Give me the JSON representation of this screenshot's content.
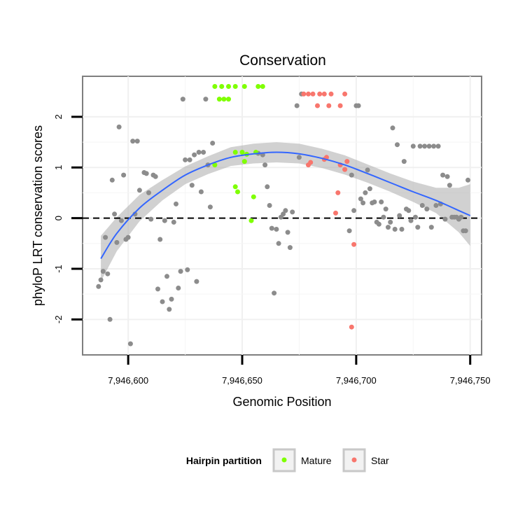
{
  "chart_data": {
    "type": "scatter",
    "title": "Conservation",
    "xlabel": "Genomic Position",
    "ylabel": "phyloP LRT conservation scores",
    "xlim": [
      7946580,
      7946755
    ],
    "ylim": [
      -2.7,
      2.8
    ],
    "x_ticks": [
      7946600,
      7946650,
      7946700,
      7946750
    ],
    "x_tick_labels": [
      "7,946,600",
      "7,946,650",
      "7,946,700",
      "7,946,750"
    ],
    "y_ticks": [
      -2,
      -1,
      0,
      1,
      2
    ],
    "y_tick_labels": [
      "-2",
      "-1",
      "0",
      "1",
      "2"
    ],
    "reference_line": {
      "y": 0,
      "style": "dashed"
    },
    "grid": true,
    "legend": {
      "title": "Hairpin partition",
      "position": "bottom",
      "entries": [
        {
          "label": "Mature",
          "color": "#7FFF00"
        },
        {
          "label": "Star",
          "color": "#F8766D"
        }
      ]
    },
    "colors": {
      "other": "#8c8c8c",
      "mature": "#7FFF00",
      "star": "#F8766D",
      "smooth": "#3366FF",
      "ribbon": "#b3b3b3"
    },
    "smooth_curve": [
      [
        7946588,
        -0.8
      ],
      [
        7946595,
        -0.3
      ],
      [
        7946605,
        0.2
      ],
      [
        7946615,
        0.55
      ],
      [
        7946625,
        0.85
      ],
      [
        7946635,
        1.05
      ],
      [
        7946645,
        1.2
      ],
      [
        7946655,
        1.27
      ],
      [
        7946665,
        1.3
      ],
      [
        7946675,
        1.27
      ],
      [
        7946685,
        1.18
      ],
      [
        7946695,
        1.05
      ],
      [
        7946705,
        0.88
      ],
      [
        7946715,
        0.7
      ],
      [
        7946725,
        0.52
      ],
      [
        7946735,
        0.35
      ],
      [
        7946745,
        0.15
      ],
      [
        7946750,
        0.05
      ]
    ],
    "smooth_band": [
      [
        7946588,
        -1.25,
        -0.35
      ],
      [
        7946595,
        -0.65,
        0.02
      ],
      [
        7946605,
        -0.06,
        0.46
      ],
      [
        7946615,
        0.35,
        0.75
      ],
      [
        7946625,
        0.67,
        1.02
      ],
      [
        7946635,
        0.87,
        1.22
      ],
      [
        7946645,
        1.03,
        1.4
      ],
      [
        7946655,
        1.08,
        1.47
      ],
      [
        7946665,
        1.1,
        1.5
      ],
      [
        7946675,
        1.08,
        1.47
      ],
      [
        7946685,
        0.99,
        1.37
      ],
      [
        7946695,
        0.86,
        1.24
      ],
      [
        7946705,
        0.7,
        1.06
      ],
      [
        7946715,
        0.52,
        0.88
      ],
      [
        7946725,
        0.32,
        0.72
      ],
      [
        7946735,
        0.1,
        0.6
      ],
      [
        7946745,
        -0.28,
        0.6
      ],
      [
        7946750,
        -0.55,
        0.67
      ]
    ],
    "series": [
      {
        "name": "Mature",
        "color": "#7FFF00",
        "points": [
          [
            7946638,
            2.6
          ],
          [
            7946641,
            2.6
          ],
          [
            7946644,
            2.6
          ],
          [
            7946647,
            2.6
          ],
          [
            7946651,
            2.6
          ],
          [
            7946657,
            2.6
          ],
          [
            7946659,
            2.6
          ],
          [
            7946640,
            2.35
          ],
          [
            7946642,
            2.35
          ],
          [
            7946644,
            2.35
          ],
          [
            7946638,
            1.05
          ],
          [
            7946647,
            1.3
          ],
          [
            7946650,
            1.3
          ],
          [
            7946652,
            1.26
          ],
          [
            7946651,
            1.12
          ],
          [
            7946656,
            1.3
          ],
          [
            7946647,
            0.62
          ],
          [
            7946648,
            0.52
          ],
          [
            7946655,
            0.42
          ],
          [
            7946654,
            -0.05
          ]
        ]
      },
      {
        "name": "Star",
        "color": "#F8766D",
        "points": [
          [
            7946677,
            2.45
          ],
          [
            7946679,
            2.45
          ],
          [
            7946681,
            2.45
          ],
          [
            7946684,
            2.45
          ],
          [
            7946686,
            2.45
          ],
          [
            7946689,
            2.45
          ],
          [
            7946695,
            2.45
          ],
          [
            7946683,
            2.22
          ],
          [
            7946688,
            2.22
          ],
          [
            7946693,
            2.22
          ],
          [
            7946679,
            1.05
          ],
          [
            7946680,
            1.1
          ],
          [
            7946686,
            1.16
          ],
          [
            7946687,
            1.2
          ],
          [
            7946693,
            1.05
          ],
          [
            7946696,
            1.12
          ],
          [
            7946695,
            0.96
          ],
          [
            7946692,
            0.5
          ],
          [
            7946691,
            0.1
          ],
          [
            7946699,
            -0.52
          ],
          [
            7946698,
            -2.15
          ]
        ]
      },
      {
        "points": [
          [
            7946587,
            -1.35
          ],
          [
            7946588,
            -1.22
          ],
          [
            7946589,
            -1.05
          ],
          [
            7946590,
            -0.38
          ],
          [
            7946591,
            -1.1
          ],
          [
            7946592,
            -2.0
          ],
          [
            7946593,
            0.75
          ],
          [
            7946594,
            0.08
          ],
          [
            7946595,
            -0.48
          ],
          [
            7946596,
            1.8
          ],
          [
            7946597,
            -0.05
          ],
          [
            7946598,
            0.85
          ],
          [
            7946599,
            -0.42
          ],
          [
            7946600,
            -0.38
          ],
          [
            7946601,
            -2.48
          ],
          [
            7946602,
            1.52
          ],
          [
            7946603,
            0.08
          ],
          [
            7946604,
            1.52
          ],
          [
            7946605,
            0.55
          ],
          [
            7946607,
            0.9
          ],
          [
            7946608,
            0.88
          ],
          [
            7946609,
            0.5
          ],
          [
            7946610,
            -0.02
          ],
          [
            7946611,
            0.85
          ],
          [
            7946612,
            0.82
          ],
          [
            7946613,
            -1.4
          ],
          [
            7946614,
            -0.42
          ],
          [
            7946615,
            -1.65
          ],
          [
            7946616,
            -0.05
          ],
          [
            7946617,
            -1.15
          ],
          [
            7946618,
            -1.8
          ],
          [
            7946619,
            -1.6
          ],
          [
            7946620,
            -0.08
          ],
          [
            7946621,
            0.28
          ],
          [
            7946622,
            -1.38
          ],
          [
            7946623,
            -1.05
          ],
          [
            7946624,
            2.35
          ],
          [
            7946625,
            1.15
          ],
          [
            7946626,
            -1.02
          ],
          [
            7946627,
            1.15
          ],
          [
            7946628,
            0.65
          ],
          [
            7946629,
            1.25
          ],
          [
            7946630,
            -1.25
          ],
          [
            7946631,
            1.3
          ],
          [
            7946632,
            0.52
          ],
          [
            7946633,
            1.3
          ],
          [
            7946634,
            2.35
          ],
          [
            7946635,
            1.05
          ],
          [
            7946636,
            0.22
          ],
          [
            7946637,
            1.48
          ],
          [
            7946657,
            1.28
          ],
          [
            7946659,
            1.25
          ],
          [
            7946660,
            1.05
          ],
          [
            7946661,
            0.62
          ],
          [
            7946662,
            0.25
          ],
          [
            7946663,
            -0.2
          ],
          [
            7946664,
            -1.48
          ],
          [
            7946665,
            -0.22
          ],
          [
            7946666,
            -0.5
          ],
          [
            7946667,
            0.02
          ],
          [
            7946668,
            0.08
          ],
          [
            7946669,
            0.15
          ],
          [
            7946670,
            -0.28
          ],
          [
            7946671,
            -0.58
          ],
          [
            7946672,
            0.12
          ],
          [
            7946674,
            2.22
          ],
          [
            7946675,
            1.2
          ],
          [
            7946676,
            2.45
          ],
          [
            7946697,
            -0.25
          ],
          [
            7946698,
            0.85
          ],
          [
            7946699,
            0.15
          ],
          [
            7946700,
            2.22
          ],
          [
            7946701,
            2.22
          ],
          [
            7946702,
            0.38
          ],
          [
            7946703,
            0.3
          ],
          [
            7946704,
            0.5
          ],
          [
            7946705,
            0.95
          ],
          [
            7946706,
            0.58
          ],
          [
            7946707,
            0.3
          ],
          [
            7946708,
            0.32
          ],
          [
            7946709,
            -0.08
          ],
          [
            7946710,
            -0.12
          ],
          [
            7946711,
            0.32
          ],
          [
            7946712,
            0.02
          ],
          [
            7946713,
            0.18
          ],
          [
            7946714,
            -0.18
          ],
          [
            7946715,
            -0.08
          ],
          [
            7946716,
            1.78
          ],
          [
            7946717,
            -0.22
          ],
          [
            7946718,
            1.45
          ],
          [
            7946719,
            0.05
          ],
          [
            7946720,
            -0.22
          ],
          [
            7946721,
            1.12
          ],
          [
            7946722,
            0.18
          ],
          [
            7946723,
            0.15
          ],
          [
            7946724,
            -0.05
          ],
          [
            7946725,
            1.42
          ],
          [
            7946726,
            0.02
          ],
          [
            7946727,
            -0.18
          ],
          [
            7946728,
            1.42
          ],
          [
            7946729,
            0.25
          ],
          [
            7946730,
            1.42
          ],
          [
            7946731,
            0.18
          ],
          [
            7946732,
            1.42
          ],
          [
            7946733,
            -0.18
          ],
          [
            7946734,
            1.42
          ],
          [
            7946735,
            0.25
          ],
          [
            7946736,
            1.42
          ],
          [
            7946737,
            0.28
          ],
          [
            7946738,
            0.85
          ],
          [
            7946739,
            -0.02
          ],
          [
            7946740,
            0.82
          ],
          [
            7946741,
            0.65
          ],
          [
            7946742,
            0.02
          ],
          [
            7946743,
            0.02
          ],
          [
            7946744,
            0.02
          ],
          [
            7946745,
            -0.02
          ],
          [
            7946746,
            0.02
          ],
          [
            7946747,
            -0.25
          ],
          [
            7946748,
            -0.25
          ],
          [
            7946749,
            0.75
          ]
        ]
      }
    ]
  }
}
